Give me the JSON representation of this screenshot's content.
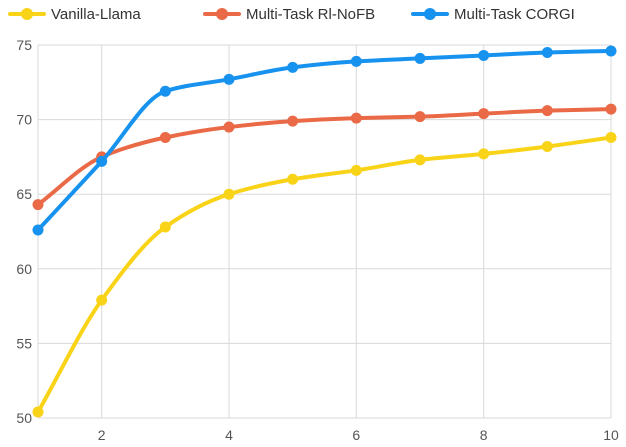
{
  "chart_data": {
    "type": "line",
    "title": "",
    "xlabel": "",
    "ylabel": "",
    "x": [
      1,
      2,
      3,
      4,
      5,
      6,
      7,
      8,
      9,
      10
    ],
    "xlim": [
      1,
      10
    ],
    "ylim": [
      50,
      75
    ],
    "x_ticks": [
      2,
      4,
      6,
      8,
      10
    ],
    "y_ticks": [
      50,
      55,
      60,
      65,
      70,
      75
    ],
    "grid": true,
    "smooth": true,
    "legend_position": "top",
    "series": [
      {
        "name": "Vanilla-Llama",
        "color": "#f9d318",
        "values": [
          50.4,
          57.9,
          62.8,
          65.0,
          66.0,
          66.6,
          67.3,
          67.7,
          68.2,
          68.8
        ]
      },
      {
        "name": "Multi-Task Rl-NoFB",
        "color": "#ea6a47",
        "values": [
          64.3,
          67.5,
          68.8,
          69.5,
          69.9,
          70.1,
          70.2,
          70.4,
          70.6,
          70.7
        ]
      },
      {
        "name": "Multi-Task CORGI",
        "color": "#1793ef",
        "values": [
          62.6,
          67.2,
          71.9,
          72.7,
          73.5,
          73.9,
          74.1,
          74.3,
          74.5,
          74.6
        ]
      }
    ]
  }
}
